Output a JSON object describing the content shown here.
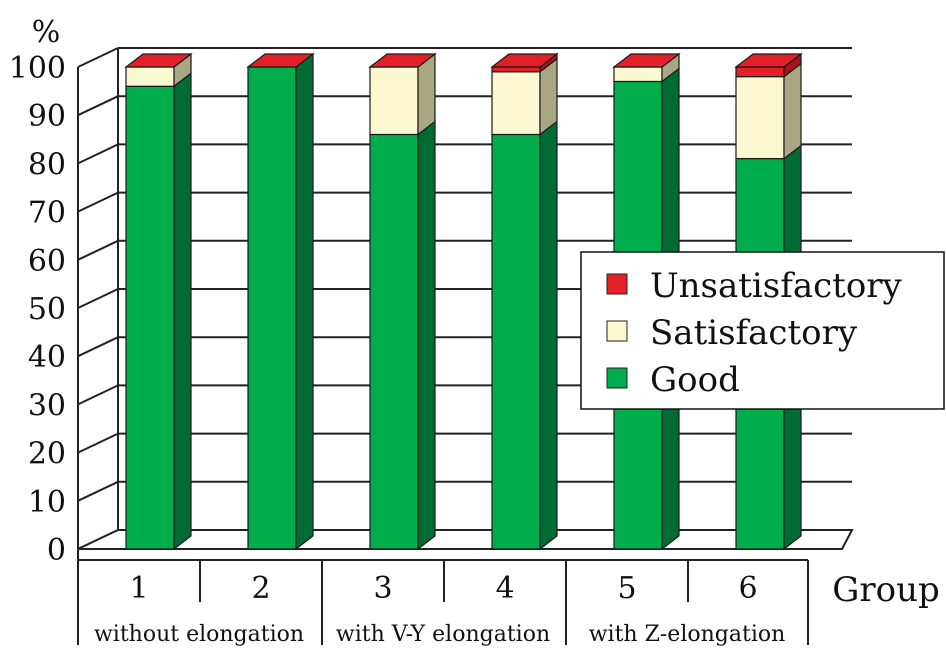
{
  "chart_data": {
    "type": "bar",
    "stacked": true,
    "three_d": true,
    "ylabel": "%",
    "xlabel": "Group",
    "ylim": [
      0,
      100
    ],
    "yticks": [
      0,
      10,
      20,
      30,
      40,
      50,
      60,
      70,
      80,
      90,
      100
    ],
    "categories": [
      "1",
      "2",
      "3",
      "4",
      "5",
      "6"
    ],
    "group_labels": [
      "without  elongation",
      "with V-Y elongation",
      "with  Z-elongation"
    ],
    "series": [
      {
        "name": "Good",
        "color": "#00ad4d",
        "values": [
          96,
          100,
          86,
          86,
          97,
          81
        ]
      },
      {
        "name": "Satisfactory",
        "color": "#fcf8cf",
        "values": [
          4,
          0,
          14,
          13,
          3,
          17
        ]
      },
      {
        "name": "Unsatisfactory",
        "color": "#e32028",
        "values": [
          0,
          0,
          0,
          1,
          0,
          2
        ]
      }
    ],
    "legend_order": [
      "Unsatisfactory",
      "Satisfactory",
      "Good"
    ],
    "legend_position": "right",
    "grid": true
  }
}
